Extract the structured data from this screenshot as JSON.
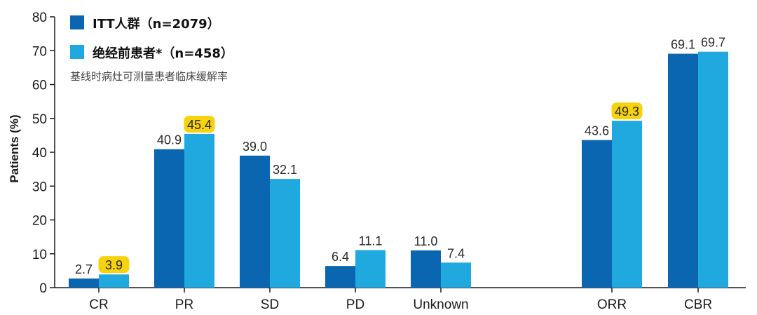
{
  "chart_data": {
    "type": "bar",
    "subtitle": "基线时病灶可测量患者临床缓解率",
    "ylabel": "Patients (%)",
    "xlabel": "",
    "ylim": [
      0,
      80
    ],
    "yticks": [
      0,
      10,
      20,
      30,
      40,
      50,
      60,
      70,
      80
    ],
    "grid": false,
    "legend_position": "top-left",
    "categories": [
      "CR",
      "PR",
      "SD",
      "PD",
      "Unknown",
      "ORR",
      "CBR"
    ],
    "group_gap_after": "Unknown",
    "series": [
      {
        "name": "ITT人群（n=2079）",
        "color": "#0a66b1",
        "values": [
          2.7,
          40.9,
          39.0,
          6.4,
          11.0,
          43.6,
          69.1
        ],
        "value_labels": [
          "2.7",
          "40.9",
          "39.0",
          "6.4",
          "11.0",
          "43.6",
          "69.1"
        ],
        "highlighted": [
          false,
          false,
          false,
          false,
          false,
          false,
          false
        ]
      },
      {
        "name": "绝经前患者*（n=458）",
        "color": "#1fa9df",
        "values": [
          3.9,
          45.4,
          32.1,
          11.1,
          7.4,
          49.3,
          69.7
        ],
        "value_labels": [
          "3.9",
          "45.4",
          "32.1",
          "11.1",
          "7.4",
          "49.3",
          "69.7"
        ],
        "highlighted": [
          true,
          true,
          false,
          false,
          false,
          true,
          false
        ]
      }
    ],
    "highlight_color": "#f7d20f"
  }
}
